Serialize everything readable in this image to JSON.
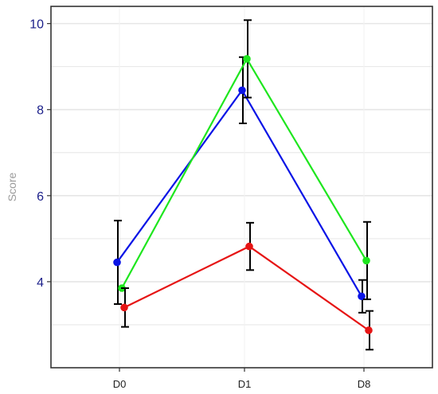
{
  "chart_data": {
    "type": "line",
    "title": "",
    "xlabel": "",
    "ylabel": "Score",
    "categories": [
      "D0",
      "D1",
      "D8"
    ],
    "ylim": [
      2.0,
      10.4
    ],
    "yticks": [
      4,
      6,
      8,
      10
    ],
    "grid": true,
    "legend": "none",
    "series": [
      {
        "color": "#0a14e6",
        "values": [
          4.45,
          8.45,
          3.66
        ],
        "err": [
          0.97,
          0.77,
          0.38
        ]
      },
      {
        "color": "#1ee61e",
        "values": [
          3.85,
          9.18,
          4.49
        ],
        "err": [
          0.0,
          0.9,
          0.9
        ]
      },
      {
        "color": "#e61414",
        "values": [
          3.4,
          4.82,
          2.87
        ],
        "err": [
          0.45,
          0.55,
          0.45
        ]
      }
    ],
    "colors": {
      "tick_text": "#1b1f8a",
      "axis_title": "#9b9b9b",
      "grid": "#e6e6e6",
      "frame": "#333333",
      "errorbar": "#000000"
    }
  }
}
